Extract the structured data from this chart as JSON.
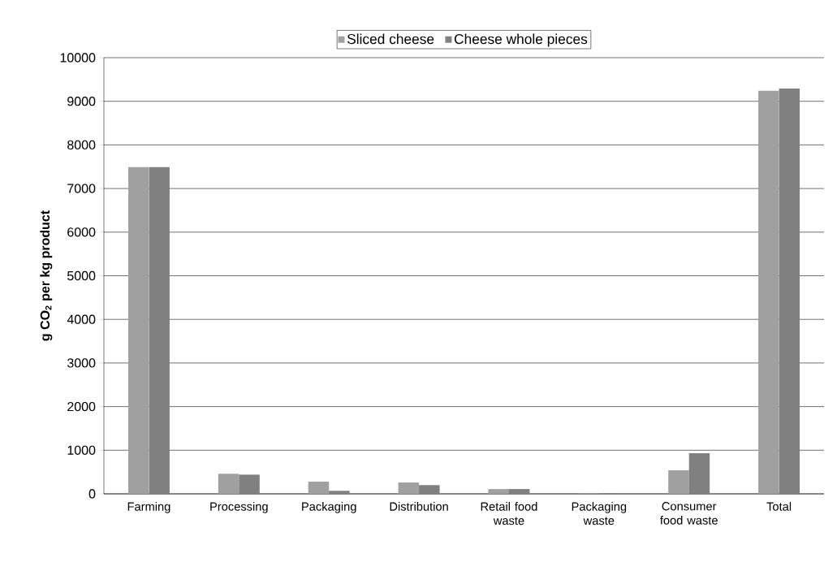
{
  "chart_data": {
    "type": "bar",
    "ylabel": "g CO$_{2}$ per kg product",
    "categories": [
      "Farming",
      "Processing",
      "Packaging",
      "Distribution",
      "Retail food waste",
      "Packaging waste",
      "Consumer food waste",
      "Total"
    ],
    "series": [
      {
        "name": "Sliced cheese",
        "color": "#a0a0a0",
        "values": [
          7490,
          460,
          280,
          260,
          110,
          10,
          540,
          9240
        ]
      },
      {
        "name": "Cheese whole pieces",
        "color": "#808080",
        "values": [
          7490,
          440,
          70,
          200,
          110,
          10,
          930,
          9290
        ]
      }
    ],
    "ylim": [
      0,
      10000
    ],
    "yticks": [
      0,
      1000,
      2000,
      3000,
      4000,
      5000,
      6000,
      7000,
      8000,
      9000,
      10000
    ],
    "grid": "y",
    "legend": "top"
  }
}
